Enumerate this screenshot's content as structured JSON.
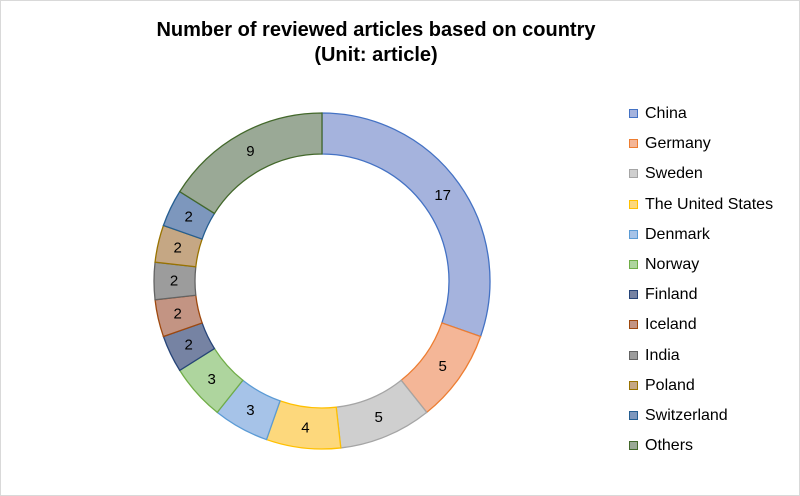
{
  "chart_data": {
    "type": "pie",
    "title": "Number of reviewed articles based on country",
    "subtitle": "(Unit: article)",
    "categories": [
      "China",
      "Germany",
      "Sweden",
      "The United States",
      "Denmark",
      "Norway",
      "Finland",
      "Iceland",
      "India",
      "Poland",
      "Switzerland",
      "Others"
    ],
    "values": [
      17,
      5,
      5,
      4,
      3,
      3,
      2,
      2,
      2,
      2,
      2,
      9
    ],
    "fill_colors": [
      "#a5b3dd",
      "#f4b697",
      "#cfcfcf",
      "#fdd87c",
      "#a6c3e8",
      "#aed59e",
      "#7683a3",
      "#c39483",
      "#9c9c9c",
      "#c5a784",
      "#7d97bd",
      "#9aa996"
    ],
    "border_colors": [
      "#4472c4",
      "#ed7d31",
      "#a5a5a5",
      "#ffc000",
      "#5b9bd5",
      "#70ad47",
      "#264478",
      "#9e480e",
      "#636363",
      "#997300",
      "#255e91",
      "#43682b"
    ],
    "legend_position": "right"
  }
}
